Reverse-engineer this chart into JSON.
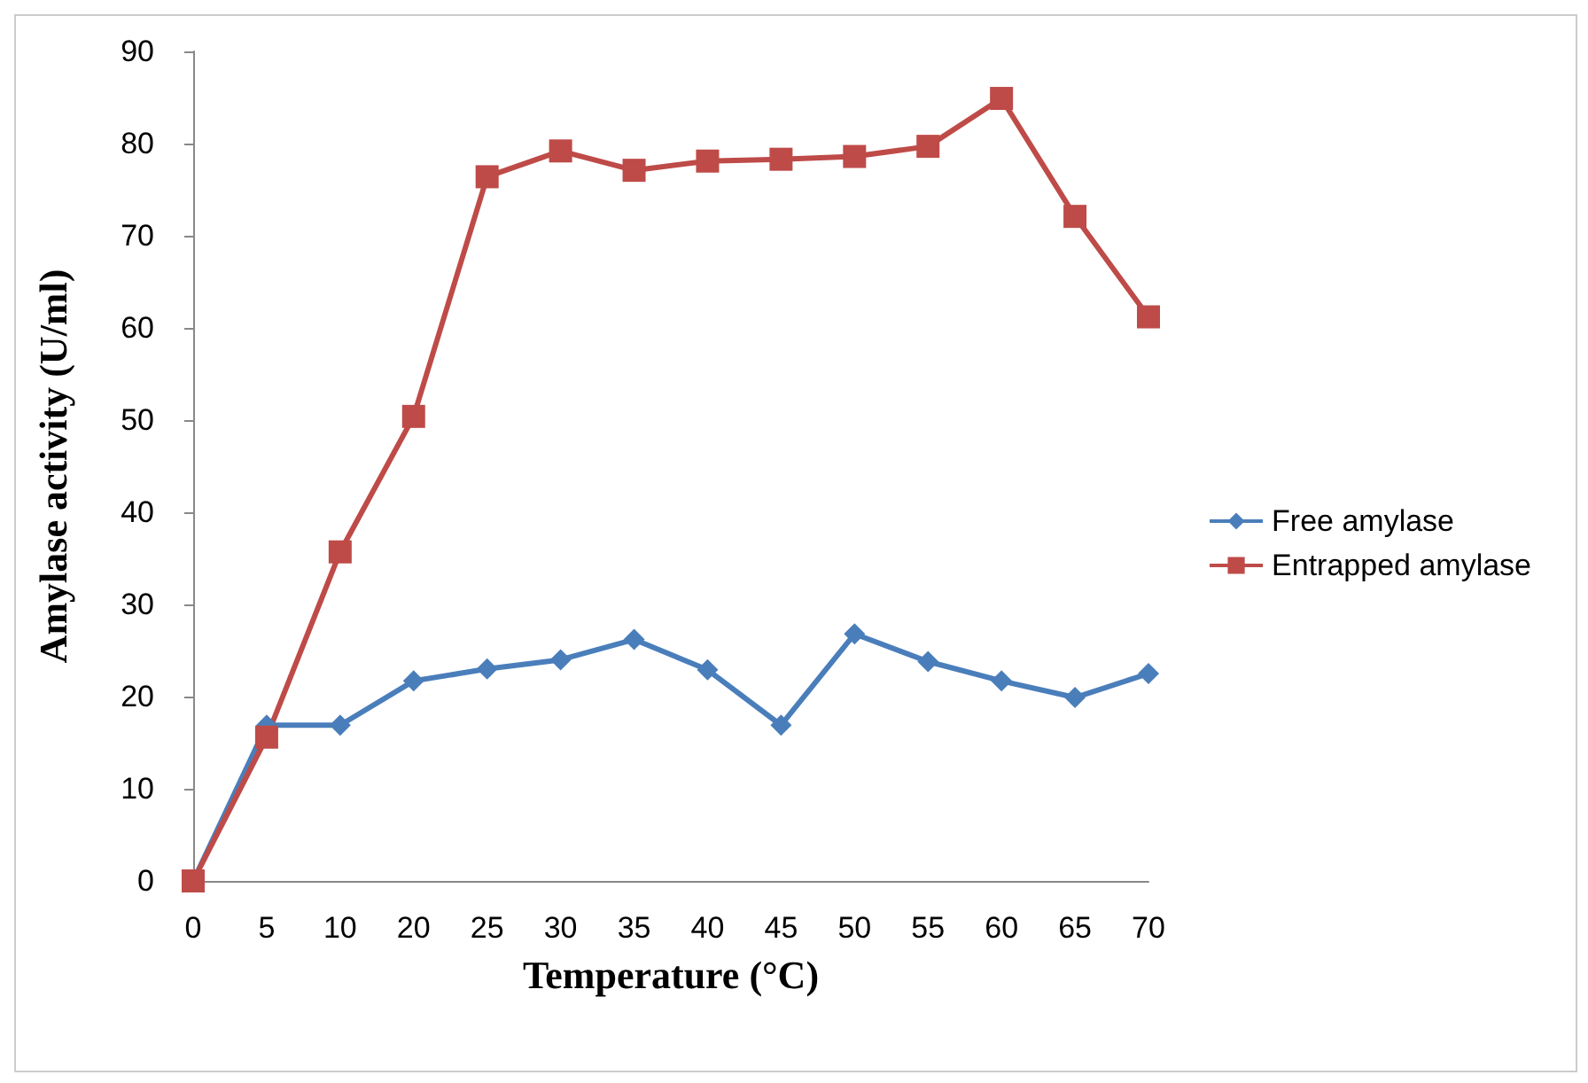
{
  "chart_data": {
    "type": "line",
    "xlabel": "Temperature (°C)",
    "ylabel": "Amylase activity (U/ml)",
    "categories": [
      "0",
      "5",
      "10",
      "20",
      "25",
      "30",
      "35",
      "40",
      "45",
      "50",
      "55",
      "60",
      "65",
      "70"
    ],
    "series": [
      {
        "name": "Free amylase",
        "color": "#4a7ebb",
        "marker": "diamond",
        "values": [
          0,
          16.9,
          16.9,
          21.7,
          23,
          24,
          26.2,
          22.9,
          16.9,
          26.8,
          23.8,
          21.7,
          19.9,
          22.5
        ]
      },
      {
        "name": "Entrapped amylase",
        "color": "#be4b48",
        "marker": "square",
        "values": [
          0,
          15.6,
          35.7,
          50.4,
          76.4,
          79.2,
          77.1,
          78.1,
          78.3,
          78.6,
          79.7,
          84.9,
          72.1,
          61.2
        ]
      }
    ],
    "ylim": [
      0,
      90
    ],
    "yticks": [
      0,
      10,
      20,
      30,
      40,
      50,
      60,
      70,
      80,
      90
    ],
    "grid": false,
    "legend": "right",
    "line_style": "solid"
  }
}
